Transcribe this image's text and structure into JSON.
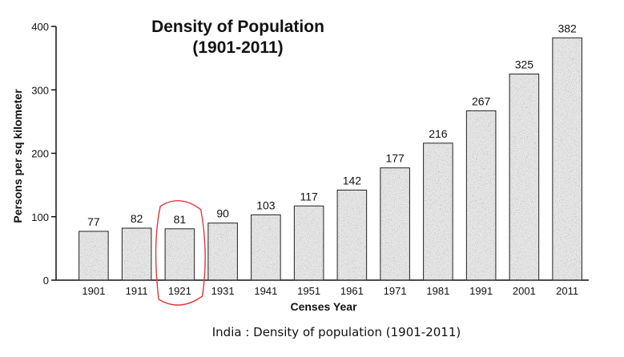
{
  "chart_data": {
    "type": "bar",
    "title": "Density of Population",
    "subtitle": "(1901-2011)",
    "xlabel": "Censes Year",
    "ylabel": "Persons per sq kilometer",
    "categories": [
      "1901",
      "1911",
      "1921",
      "1931",
      "1941",
      "1951",
      "1961",
      "1971",
      "1981",
      "1991",
      "2001",
      "2011"
    ],
    "values": [
      77,
      82,
      81,
      90,
      103,
      117,
      142,
      177,
      216,
      267,
      325,
      382
    ],
    "ylim": [
      0,
      400
    ],
    "yticks": [
      0,
      100,
      200,
      300,
      400
    ],
    "grid": false,
    "highlighted_category": "1921",
    "colors": {
      "bar": "#8a8a8a",
      "bar_edge": "#222222",
      "highlight": "#e0393e"
    }
  },
  "caption": "India : Density of population (1901-2011)"
}
